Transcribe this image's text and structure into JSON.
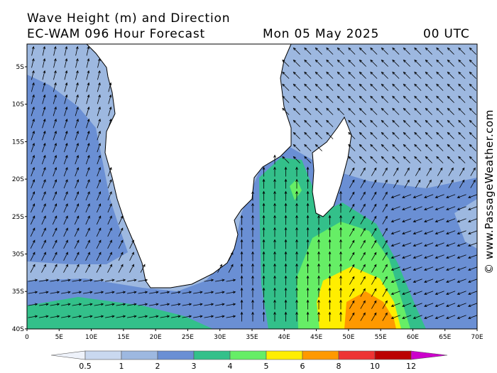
{
  "header": {
    "title": "Wave Height (m) and Direction",
    "subtitle": "EC-WAM 096 Hour Forecast",
    "date": "Mon 05 May 2025",
    "time": "00 UTC"
  },
  "map": {
    "lat_labels": [
      "5S",
      "10S",
      "15S",
      "20S",
      "25S",
      "30S",
      "35S",
      "40S"
    ],
    "lon_labels": [
      "0",
      "5E",
      "10E",
      "15E",
      "20E",
      "25E",
      "30E",
      "35E",
      "40E",
      "45E",
      "50E",
      "55E",
      "60E",
      "65E",
      "70E"
    ]
  },
  "colorbar": {
    "labels": [
      "0.5",
      "1",
      "2",
      "3",
      "4",
      "5",
      "6",
      "8",
      "10",
      "12"
    ]
  },
  "watermark": "© www.PassageWeather.com"
}
